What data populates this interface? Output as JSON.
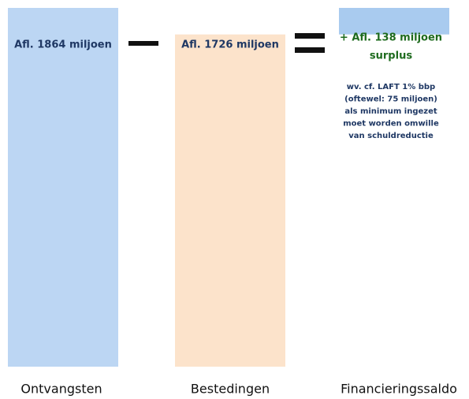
{
  "chart_data": {
    "type": "bar",
    "categories": [
      "Ontvangsten",
      "Bestedingen",
      "Financieringssaldo"
    ],
    "values": [
      1864,
      1726,
      138
    ],
    "value_labels": [
      "Afl. 1864 miljoen",
      "Afl. 1726 miljoen",
      "+ Afl. 138 miljoen"
    ],
    "colors": [
      "#bcd6f3",
      "#fce3cb",
      "#a9cbef"
    ],
    "annotations": [
      "surplus",
      "wv. cf. LAFT 1% bbp",
      "(oftewel: 75 miljoen)",
      "als minimum ingezet",
      "moet worden omwille",
      "van schuldreductie"
    ]
  }
}
